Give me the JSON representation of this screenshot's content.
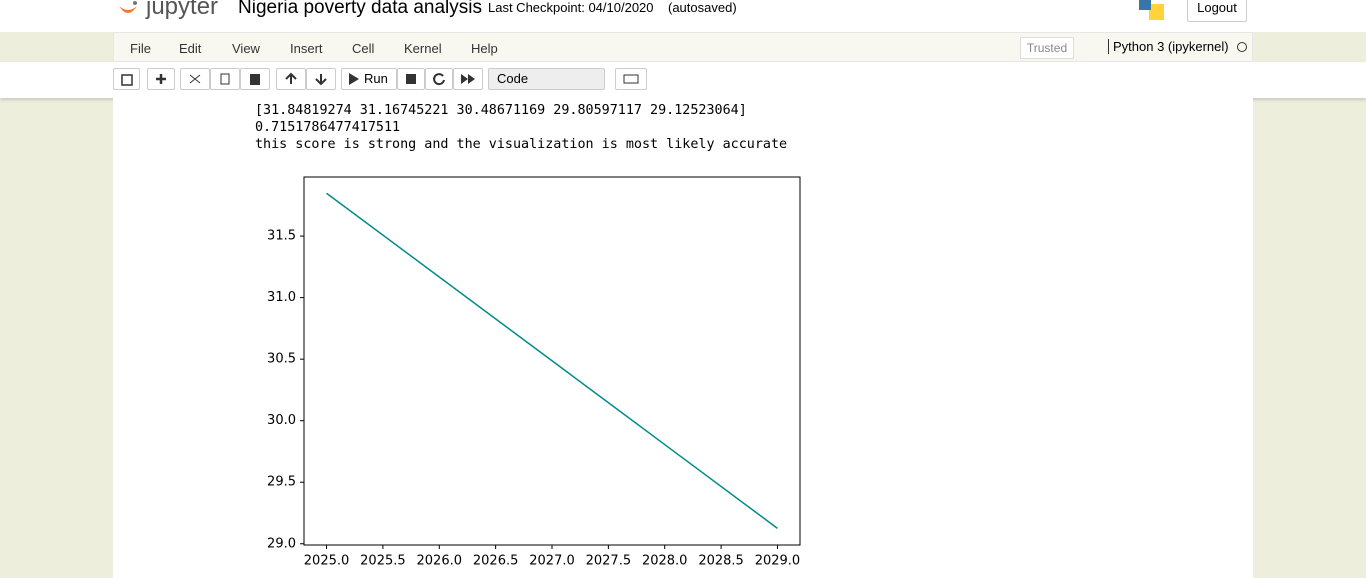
{
  "header": {
    "logo": "jupyter",
    "title": "Nigeria poverty data analysis",
    "checkpoint": "Last Checkpoint: 04/10/2020",
    "autosaved": "(autosaved)",
    "logout": "Logout"
  },
  "menu": [
    "File",
    "Edit",
    "View",
    "Insert",
    "Cell",
    "Kernel",
    "Help"
  ],
  "status": {
    "trusted": "Trusted",
    "kernel": "Python 3 (ipykernel)"
  },
  "toolbar": {
    "run": "Run",
    "cell_type": "Code"
  },
  "output": [
    "[31.84819274 31.16745221 30.48671169 29.80597117 29.12523064]",
    "0.7151786477417511",
    "this score is strong and the visualization is most likely accurate"
  ],
  "chart_data": {
    "type": "line",
    "x": [
      2025,
      2026,
      2027,
      2028,
      2029
    ],
    "series": [
      {
        "color": "#008b8b",
        "values": [
          31.84819274,
          31.16745221,
          30.48671169,
          29.80597117,
          29.12523064
        ]
      }
    ],
    "xlim": [
      2024.8,
      2029.2
    ],
    "xticks": [
      {
        "value": 2025,
        "label": "2025.0"
      },
      2025.5,
      {
        "value": 2026,
        "label": "2026.0"
      },
      2026.5,
      {
        "value": 2027,
        "label": "2027.0"
      },
      2027.5,
      {
        "value": 2028,
        "label": "2028.0"
      },
      2028.5,
      {
        "value": 2029,
        "label": "2029.0"
      }
    ],
    "ylim": [
      28.99,
      31.98
    ],
    "yticks": [
      {
        "value": 29,
        "label": "29.0"
      },
      29.5,
      {
        "value": 30,
        "label": "30.0"
      },
      30.5,
      {
        "value": 31,
        "label": "31.0"
      },
      31.5
    ]
  }
}
